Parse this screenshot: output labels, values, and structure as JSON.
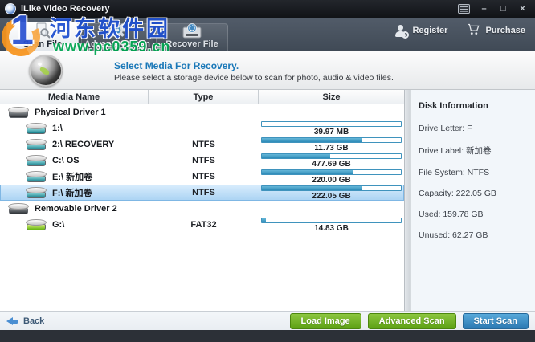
{
  "window": {
    "title": "iLike Video Recovery",
    "controls": {
      "minimize": "–",
      "maximize": "□",
      "close": "×"
    }
  },
  "watermark": {
    "logo_text": "1",
    "site_name": "河东软件园",
    "site_url": "www.pc0359.cn"
  },
  "toolbar": {
    "tabs": [
      {
        "label": "Scan File",
        "active": true
      },
      {
        "label": "Advanced Scan",
        "active": false
      },
      {
        "label": "Recover File",
        "active": false
      }
    ],
    "register_label": "Register",
    "purchase_label": "Purchase"
  },
  "banner": {
    "title": "Select Media For Recovery.",
    "subtitle": "Please select a storage device below to scan for photo, audio & video files."
  },
  "table": {
    "columns": [
      "Media Name",
      "Type",
      "Size"
    ],
    "rows": [
      {
        "name": "Physical Driver 1",
        "type": "",
        "size": "",
        "kind": "group",
        "disk": "dark"
      },
      {
        "name": "1:\\",
        "type": "",
        "size": "39.97 MB",
        "fill_percent": 0,
        "kind": "volume",
        "disk": "teal"
      },
      {
        "name": "2:\\ RECOVERY",
        "type": "NTFS",
        "size": "11.73 GB",
        "fill_percent": 72,
        "kind": "volume",
        "disk": "teal"
      },
      {
        "name": "C:\\ OS",
        "type": "NTFS",
        "size": "477.69 GB",
        "fill_percent": 49,
        "kind": "volume",
        "disk": "teal"
      },
      {
        "name": "E:\\ 新加卷",
        "type": "NTFS",
        "size": "220.00 GB",
        "fill_percent": 66,
        "kind": "volume",
        "disk": "teal"
      },
      {
        "name": "F:\\ 新加卷",
        "type": "NTFS",
        "size": "222.05 GB",
        "fill_percent": 72,
        "kind": "volume",
        "disk": "teal",
        "selected": true
      },
      {
        "name": "Removable Driver 2",
        "type": "",
        "size": "",
        "kind": "group",
        "disk": "dark"
      },
      {
        "name": "G:\\",
        "type": "FAT32",
        "size": "14.83 GB",
        "fill_percent": 3,
        "kind": "volume",
        "disk": "green"
      }
    ]
  },
  "disk_info": {
    "title": "Disk Information",
    "items": [
      {
        "label": "Drive Letter",
        "value": "F"
      },
      {
        "label": "Drive Label",
        "value": "新加卷"
      },
      {
        "label": "File System",
        "value": "NTFS"
      },
      {
        "label": "Capacity",
        "value": "222.05 GB"
      },
      {
        "label": "Used",
        "value": "159.78 GB"
      },
      {
        "label": "Unused",
        "value": "62.27 GB"
      }
    ]
  },
  "footer": {
    "back_label": "Back",
    "buttons": [
      {
        "label": "Load Image",
        "style": "green"
      },
      {
        "label": "Advanced Scan",
        "style": "green"
      },
      {
        "label": "Start Scan",
        "style": "blue"
      }
    ]
  },
  "colors": {
    "titlebar": "#16181c",
    "toolbar": "#48525f",
    "selection_highlight": "#aad3f3",
    "usage_bar_fill": "#3a9cc4",
    "button_green": "#6aac1f",
    "button_blue": "#3a8cc2",
    "banner_title_blue": "#1a78b8",
    "watermark_blue": "#1d4fd0",
    "watermark_green": "#00a651",
    "watermark_orange": "#f7941d"
  }
}
